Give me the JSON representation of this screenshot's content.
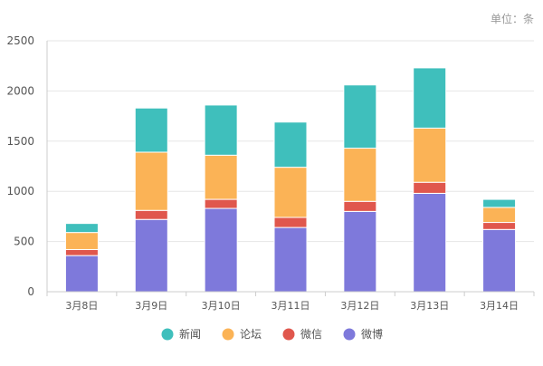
{
  "unit_label": "单位：条",
  "chart_data": {
    "type": "bar",
    "stacked": true,
    "categories": [
      "3月8日",
      "3月9日",
      "3月10日",
      "3月11日",
      "3月12日",
      "3月13日",
      "3月14日"
    ],
    "ylim": [
      0,
      2500
    ],
    "yticks": [
      0,
      500,
      1000,
      1500,
      2000,
      2500
    ],
    "grid": true,
    "legend_position": "bottom",
    "series": [
      {
        "name": "微博",
        "color": "#7e79db",
        "values": [
          360,
          720,
          830,
          640,
          800,
          980,
          620
        ]
      },
      {
        "name": "微信",
        "color": "#e0574d",
        "values": [
          60,
          90,
          90,
          100,
          100,
          110,
          70
        ]
      },
      {
        "name": "论坛",
        "color": "#fbb356",
        "values": [
          170,
          580,
          440,
          500,
          530,
          540,
          150
        ]
      },
      {
        "name": "新闻",
        "color": "#3fbfbc",
        "values": [
          90,
          440,
          500,
          450,
          630,
          600,
          80
        ]
      }
    ],
    "legend_order": [
      "新闻",
      "论坛",
      "微信",
      "微博"
    ]
  }
}
